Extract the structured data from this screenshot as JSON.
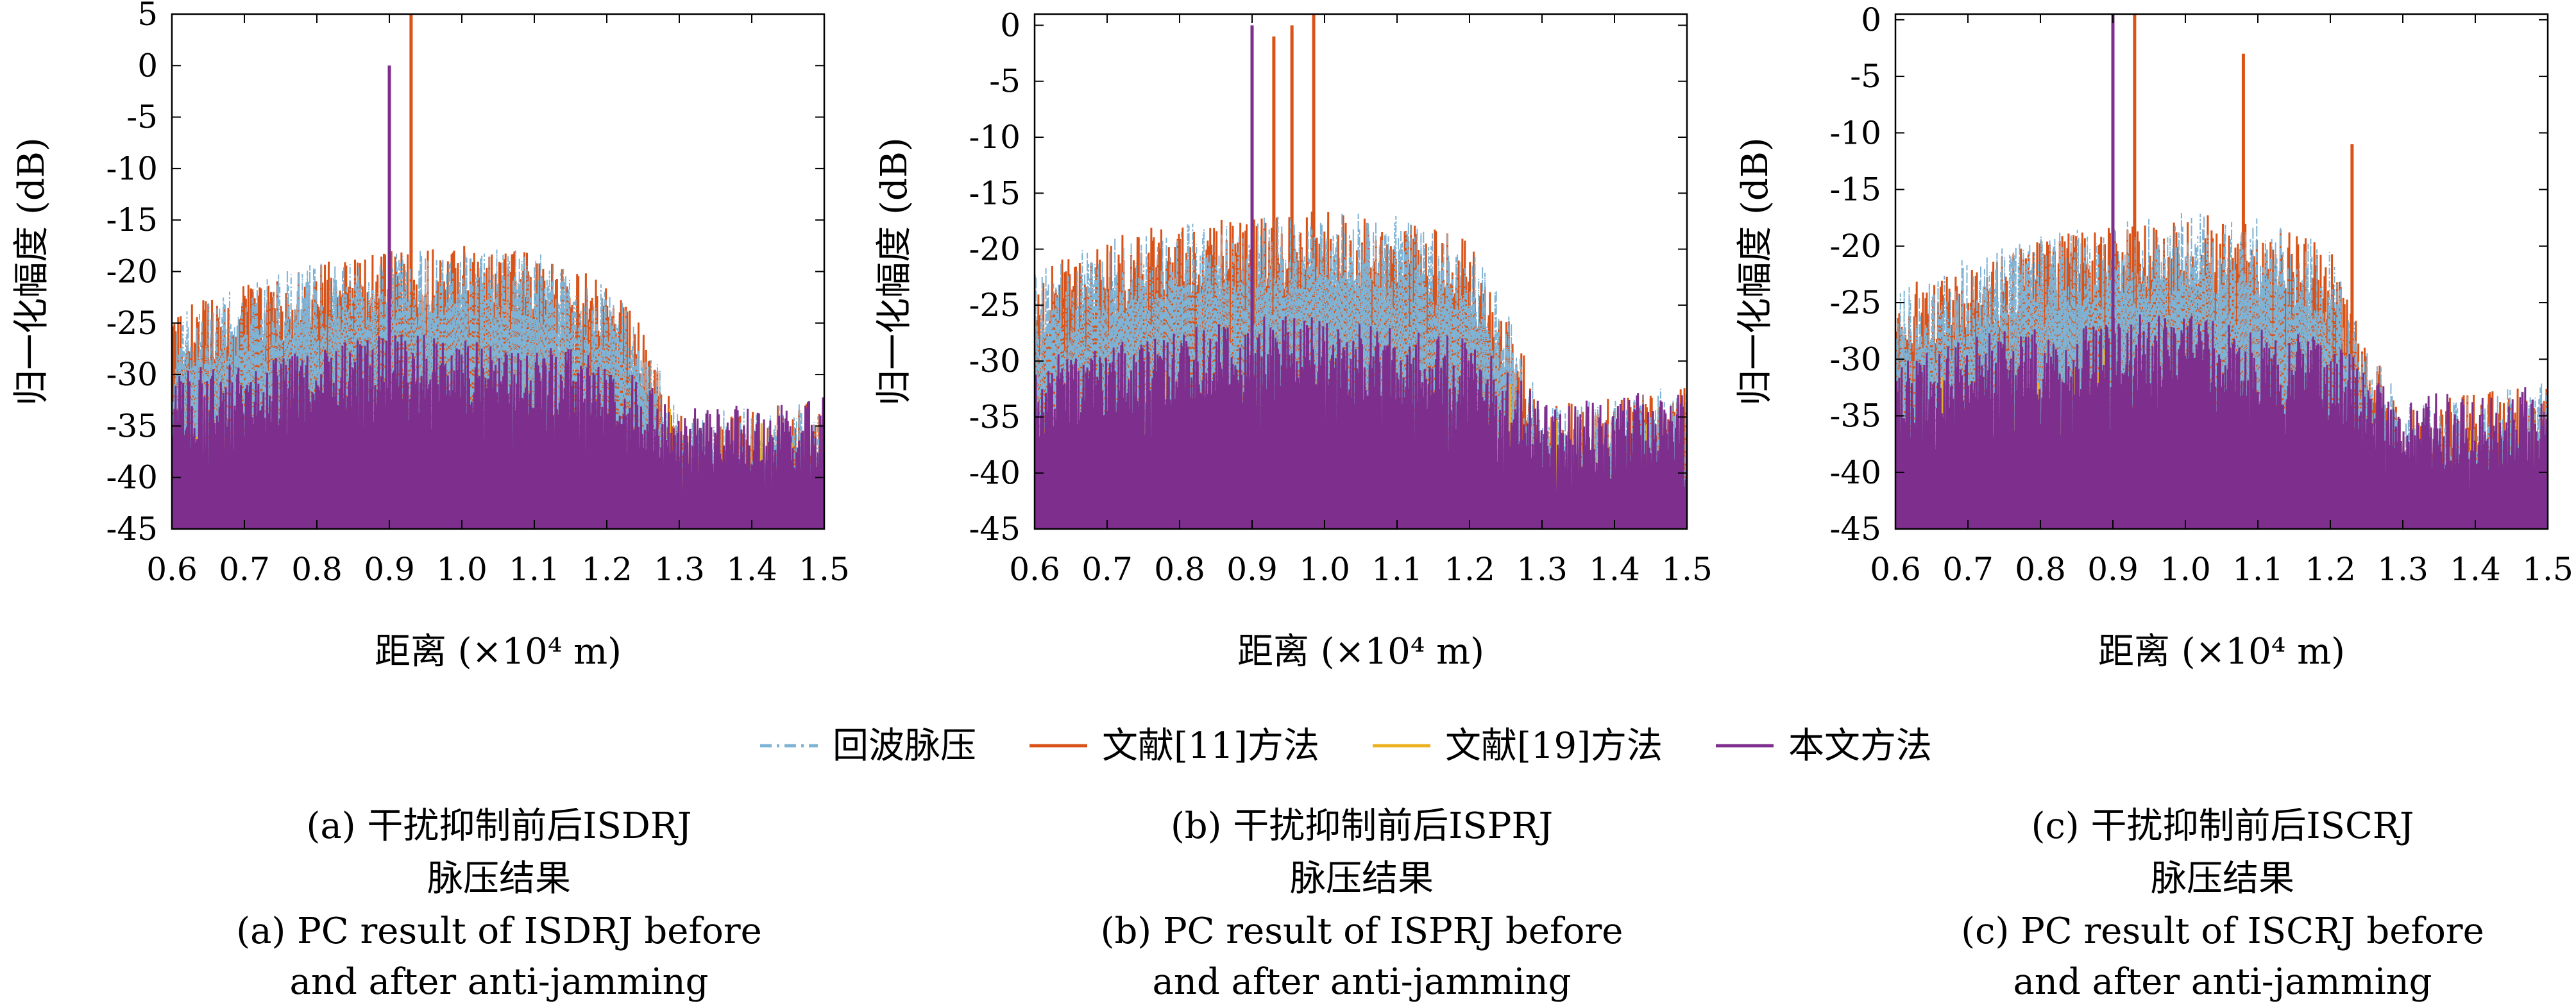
{
  "chart_data": [
    {
      "type": "line",
      "xlabel": "距离 (×10⁴ m)",
      "ylabel": "归一化幅度 (dB)",
      "xlim": [
        0.6,
        1.5
      ],
      "ylim": [
        -45,
        5
      ],
      "x_ticks": [
        "0.6",
        "0.7",
        "0.8",
        "0.9",
        "1.0",
        "1.1",
        "1.2",
        "1.3",
        "1.4",
        "1.5"
      ],
      "y_ticks": [
        "5",
        "0",
        "-5",
        "-10",
        "-15",
        "-20",
        "-25",
        "-30",
        "-35",
        "-40",
        "-45"
      ],
      "grid": false,
      "caption_cn": [
        "(a) 干扰抑制前后ISDRJ",
        "脉压结果"
      ],
      "caption_en": [
        "(a) PC result of ISDRJ before",
        "and after anti-jamming"
      ],
      "series": [
        {
          "name": "回波脉压",
          "color": "#7FB3D5",
          "style": "dash-dot",
          "envelope": {
            "x": [
              0.6,
              0.7,
              0.8,
              0.9,
              1.0,
              1.1,
              1.2,
              1.25,
              1.3,
              1.4,
              1.5
            ],
            "y": [
              -24,
              -21,
              -19,
              -18,
              -17.5,
              -18,
              -21,
              -25,
              -34,
              -33,
              -32
            ]
          }
        },
        {
          "name": "文献[11]方法",
          "color": "#D95319",
          "style": "solid",
          "envelope": {
            "x": [
              0.6,
              0.7,
              0.8,
              0.9,
              1.0,
              1.1,
              1.2,
              1.25,
              1.3,
              1.4,
              1.5
            ],
            "y": [
              -24,
              -21,
              -19,
              -18,
              -17.5,
              -18,
              -21,
              -25,
              -34,
              -33,
              -32
            ]
          },
          "peaks": [
            {
              "x": 0.93,
              "y": 5
            }
          ]
        },
        {
          "name": "文献[19]方法",
          "color": "#EDB120",
          "style": "solid",
          "envelope": {
            "x": [
              0.6,
              0.9,
              1.2,
              1.5
            ],
            "y": [
              -30,
              -28,
              -30,
              -34
            ]
          }
        },
        {
          "name": "本文方法",
          "color": "#7E2F8E",
          "style": "solid",
          "envelope": {
            "x": [
              0.6,
              0.7,
              0.8,
              0.9,
              1.0,
              1.1,
              1.2,
              1.3,
              1.4,
              1.5
            ],
            "y": [
              -30,
              -28,
              -27,
              -26,
              -26,
              -27,
              -28,
              -33,
              -33,
              -32
            ]
          },
          "peaks": [
            {
              "x": 0.9,
              "y": 0
            }
          ]
        }
      ]
    },
    {
      "type": "line",
      "xlabel": "距离 (×10⁴ m)",
      "ylabel": "归一化幅度 (dB)",
      "xlim": [
        0.6,
        1.5
      ],
      "ylim": [
        -45,
        1
      ],
      "x_ticks": [
        "0.6",
        "0.7",
        "0.8",
        "0.9",
        "1.0",
        "1.1",
        "1.2",
        "1.3",
        "1.4",
        "1.5"
      ],
      "y_ticks": [
        "0",
        "-5",
        "-10",
        "-15",
        "-20",
        "-25",
        "-30",
        "-35",
        "-40",
        "-45"
      ],
      "grid": false,
      "caption_cn": [
        "(b) 干扰抑制前后ISPRJ",
        "脉压结果"
      ],
      "caption_en": [
        "(b) PC result of ISPRJ before",
        "and after anti-jamming"
      ],
      "series": [
        {
          "name": "回波脉压",
          "color": "#7FB3D5",
          "style": "dash-dot",
          "envelope": {
            "x": [
              0.6,
              0.7,
              0.8,
              0.9,
              1.0,
              1.1,
              1.2,
              1.25,
              1.3,
              1.4,
              1.5
            ],
            "y": [
              -22,
              -19,
              -17.5,
              -17,
              -16.5,
              -17,
              -19,
              -25,
              -34,
              -33,
              -32
            ]
          }
        },
        {
          "name": "文献[11]方法",
          "color": "#D95319",
          "style": "solid",
          "envelope": {
            "x": [
              0.6,
              0.7,
              0.8,
              0.9,
              1.0,
              1.1,
              1.2,
              1.25,
              1.3,
              1.4,
              1.5
            ],
            "y": [
              -22,
              -19,
              -17.5,
              -17,
              -16.5,
              -17,
              -19,
              -25,
              -34,
              -33,
              -32
            ]
          },
          "peaks": [
            {
              "x": 0.93,
              "y": -1
            },
            {
              "x": 0.955,
              "y": 0
            },
            {
              "x": 0.985,
              "y": 1
            }
          ]
        },
        {
          "name": "文献[19]方法",
          "color": "#EDB120",
          "style": "solid",
          "envelope": {
            "x": [
              0.6,
              0.9,
              1.2,
              1.5
            ],
            "y": [
              -30,
              -28,
              -30,
              -34
            ]
          }
        },
        {
          "name": "本文方法",
          "color": "#7E2F8E",
          "style": "solid",
          "envelope": {
            "x": [
              0.6,
              0.7,
              0.8,
              0.9,
              1.0,
              1.1,
              1.2,
              1.3,
              1.4,
              1.5
            ],
            "y": [
              -30,
              -28,
              -27,
              -26,
              -26,
              -27,
              -28,
              -33,
              -33,
              -32
            ]
          },
          "peaks": [
            {
              "x": 0.9,
              "y": 0
            }
          ]
        }
      ]
    },
    {
      "type": "line",
      "xlabel": "距离 (×10⁴ m)",
      "ylabel": "归一化幅度 (dB)",
      "xlim": [
        0.6,
        1.5
      ],
      "ylim": [
        -45,
        0.5
      ],
      "x_ticks": [
        "0.6",
        "0.7",
        "0.8",
        "0.9",
        "1.0",
        "1.1",
        "1.2",
        "1.3",
        "1.4",
        "1.5"
      ],
      "y_ticks": [
        "0",
        "-5",
        "-10",
        "-15",
        "-20",
        "-25",
        "-30",
        "-35",
        "-40",
        "-45"
      ],
      "grid": false,
      "caption_cn": [
        "(c) 干扰抑制前后ISCRJ",
        "脉压结果"
      ],
      "caption_en": [
        "(c) PC result of ISCRJ before",
        "and after anti-jamming"
      ],
      "series": [
        {
          "name": "回波脉压",
          "color": "#7FB3D5",
          "style": "dash-dot",
          "envelope": {
            "x": [
              0.6,
              0.7,
              0.8,
              0.9,
              1.0,
              1.1,
              1.2,
              1.25,
              1.3,
              1.4,
              1.5
            ],
            "y": [
              -24,
              -21,
              -19,
              -18,
              -17,
              -17.5,
              -20,
              -28,
              -34,
              -33,
              -32
            ]
          }
        },
        {
          "name": "文献[11]方法",
          "color": "#D95319",
          "style": "solid",
          "envelope": {
            "x": [
              0.6,
              0.7,
              0.8,
              0.9,
              1.0,
              1.1,
              1.2,
              1.25,
              1.3,
              1.4,
              1.5
            ],
            "y": [
              -24,
              -21,
              -19,
              -18,
              -17,
              -17.5,
              -20,
              -28,
              -34,
              -33,
              -32
            ]
          },
          "peaks": [
            {
              "x": 0.93,
              "y": 0.5
            },
            {
              "x": 1.08,
              "y": -3
            },
            {
              "x": 1.23,
              "y": -11
            }
          ]
        },
        {
          "name": "文献[19]方法",
          "color": "#EDB120",
          "style": "solid",
          "envelope": {
            "x": [
              0.6,
              0.9,
              1.2,
              1.5
            ],
            "y": [
              -30,
              -28,
              -30,
              -34
            ]
          }
        },
        {
          "name": "本文方法",
          "color": "#7E2F8E",
          "style": "solid",
          "envelope": {
            "x": [
              0.6,
              0.7,
              0.8,
              0.9,
              1.0,
              1.1,
              1.2,
              1.3,
              1.4,
              1.5
            ],
            "y": [
              -30,
              -28,
              -27,
              -26,
              -26,
              -27,
              -28,
              -33,
              -33,
              -32
            ]
          },
          "peaks": [
            {
              "x": 0.9,
              "y": 0.5
            }
          ]
        }
      ]
    }
  ],
  "legend": {
    "placement": "bottom-center",
    "items": [
      {
        "name": "回波脉压",
        "color": "#7FB3D5",
        "style": "dash-dot"
      },
      {
        "name": "文献[11]方法",
        "color": "#D95319",
        "style": "solid"
      },
      {
        "name": "文献[19]方法",
        "color": "#EDB120",
        "style": "solid"
      },
      {
        "name": "本文方法",
        "color": "#7E2F8E",
        "style": "solid"
      }
    ]
  }
}
